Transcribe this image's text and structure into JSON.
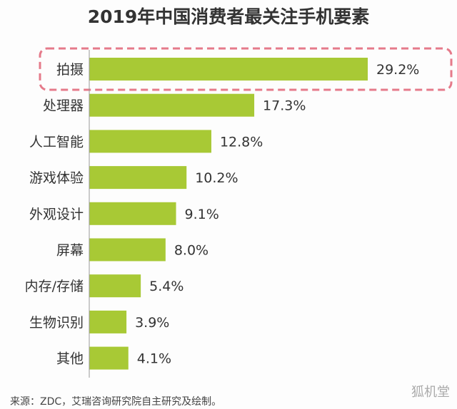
{
  "chart_data": {
    "type": "bar",
    "orientation": "horizontal",
    "title": "2019年中国消费者最关注手机要素",
    "categories": [
      "拍摄",
      "处理器",
      "人工智能",
      "游戏体验",
      "外观设计",
      "屏幕",
      "内存/存储",
      "生物识别",
      "其他"
    ],
    "values": [
      29.2,
      17.3,
      12.8,
      10.2,
      9.1,
      8.0,
      5.4,
      3.9,
      4.1
    ],
    "value_labels": [
      "29.2%",
      "17.3%",
      "12.8%",
      "10.2%",
      "9.1%",
      "8.0%",
      "5.4%",
      "3.9%",
      "4.1%"
    ],
    "highlighted_category": "拍摄",
    "bar_color": "#a8c935",
    "highlight_color": "#e57a8a",
    "grid": false
  },
  "source": "来源：ZDC，艾瑞咨询研究院自主研究及绘制。",
  "watermark": "狐机堂"
}
